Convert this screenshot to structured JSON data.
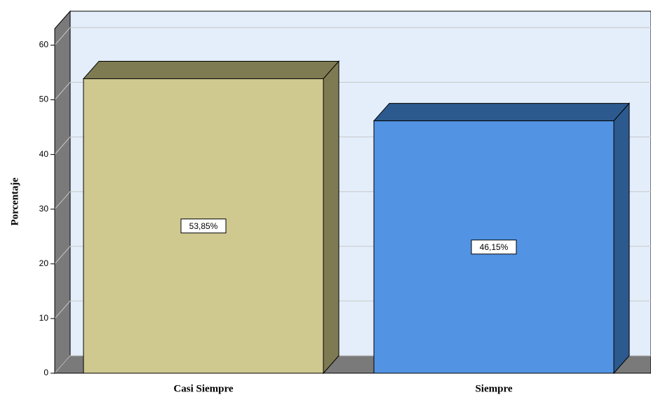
{
  "chart_data": {
    "type": "bar3d",
    "y_label": "Porcentaje",
    "categories": [
      "Casi Siempre",
      "Siempre"
    ],
    "series": [
      {
        "name": null,
        "values": [
          53.85,
          46.15
        ],
        "value_labels": [
          "53,85%",
          "46,15%"
        ],
        "colors": [
          "#cfc990",
          "#5294e3"
        ],
        "shade_colors": [
          "#7e7a52",
          "#2d5a8e"
        ]
      }
    ],
    "ylim": [
      0,
      63
    ],
    "yticks": [
      0,
      10,
      20,
      30,
      40,
      50,
      60
    ],
    "grid": true,
    "wall_color": "#e3eefa",
    "floor_color": "#7a7a7a"
  }
}
